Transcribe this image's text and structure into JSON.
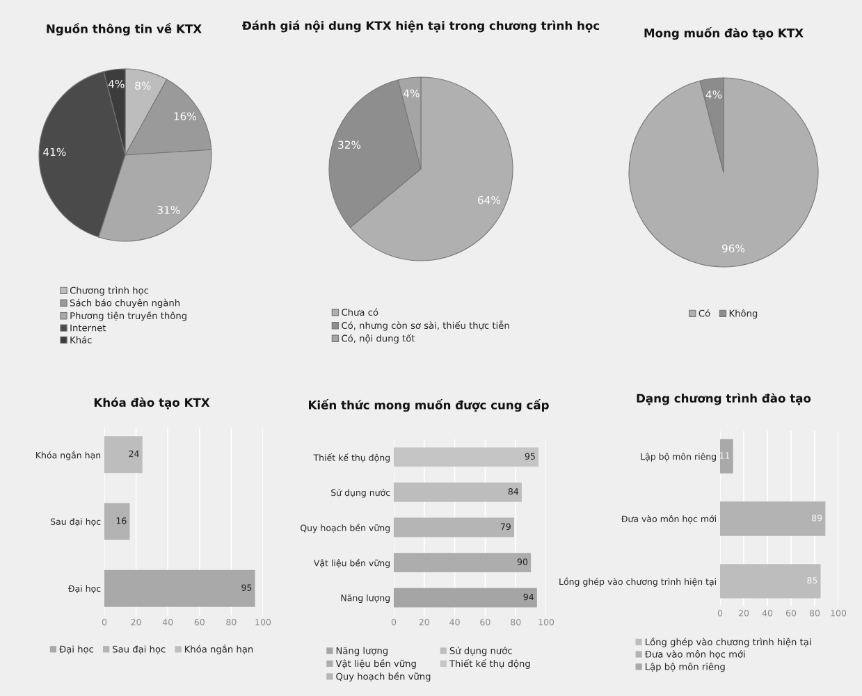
{
  "chart_data": [
    {
      "type": "pie",
      "title": "Nguồn thông tin về KTX",
      "categories": [
        "Chương trình học",
        "Sách báo chuyên ngành",
        "Phương tiện truyền thông",
        "Internet",
        "Khác"
      ],
      "values": [
        8,
        16,
        31,
        41,
        4
      ],
      "value_labels": [
        "8%",
        "16%",
        "31%",
        "41%",
        "4%"
      ],
      "colors": [
        "#bdbdbd",
        "#9a9a9a",
        "#aaaaaa",
        "#4a4a4a",
        "#3c3c3c"
      ],
      "legend": "bottom"
    },
    {
      "type": "pie",
      "title": "Đánh giá nội dung KTX hiện tại trong chương trình học",
      "categories": [
        "Chưa có",
        "Có, nhưng còn sơ sài, thiếu thực tiễn",
        "Có, nội dung tốt"
      ],
      "values": [
        64,
        32,
        4
      ],
      "value_labels": [
        "64%",
        "32%",
        "4%"
      ],
      "colors": [
        "#b0b0b0",
        "#8e8e8e",
        "#a5a5a5"
      ],
      "legend": "bottom"
    },
    {
      "type": "pie",
      "title": "Mong muốn đào tạo KTX",
      "categories": [
        "Có",
        "Không"
      ],
      "values": [
        96,
        4
      ],
      "value_labels": [
        "96%",
        "4%"
      ],
      "colors": [
        "#b0b0b0",
        "#8c8c8c"
      ],
      "legend": "bottom"
    },
    {
      "type": "bar",
      "orientation": "horizontal",
      "title": "Khóa đào tạo KTX",
      "categories": [
        "Khóa ngắn hạn",
        "Sau đại học",
        "Đại học"
      ],
      "series": [
        {
          "name": "Đại học",
          "color": "#a9a9a9",
          "values": [
            null,
            null,
            95
          ]
        },
        {
          "name": "Sau đại học",
          "color": "#b3b3b3",
          "values": [
            null,
            16,
            null
          ]
        },
        {
          "name": "Khóa ngắn hạn",
          "color": "#bdbdbd",
          "values": [
            24,
            null,
            null
          ]
        }
      ],
      "xlim": [
        0,
        100
      ],
      "xticks": [
        0,
        20,
        40,
        60,
        80,
        100
      ],
      "grid": "x",
      "data_labels": true,
      "legend": "bottom"
    },
    {
      "type": "bar",
      "orientation": "horizontal",
      "title": "Kiến thức mong muốn được cung cấp",
      "categories": [
        "Thiết kế thụ động",
        "Sử dụng nước",
        "Quy hoạch bền vững",
        "Vật liệu bền vững",
        "Năng lượng"
      ],
      "series": [
        {
          "name": "Năng lượng",
          "color": "#a5a5a5",
          "values": [
            null,
            null,
            null,
            null,
            94
          ]
        },
        {
          "name": "Vật liệu bền vững",
          "color": "#adadad",
          "values": [
            null,
            null,
            null,
            90,
            null
          ]
        },
        {
          "name": "Quy hoạch bền vững",
          "color": "#b5b5b5",
          "values": [
            null,
            null,
            79,
            null,
            null
          ]
        },
        {
          "name": "Sử dụng nước",
          "color": "#bdbdbd",
          "values": [
            null,
            84,
            null,
            null,
            null
          ]
        },
        {
          "name": "Thiết kế thụ động",
          "color": "#c5c5c5",
          "values": [
            95,
            null,
            null,
            null,
            null
          ]
        }
      ],
      "xlim": [
        0,
        100
      ],
      "xticks": [
        0,
        20,
        40,
        60,
        80,
        100
      ],
      "grid": "x",
      "data_labels": true,
      "legend": "bottom"
    },
    {
      "type": "bar",
      "orientation": "horizontal",
      "title": "Dạng chương trình đào tạo",
      "categories": [
        "Lập bộ môn riêng",
        "Đưa vào môn học mới",
        "Lồng ghép vào chương trình hiện tại"
      ],
      "series": [
        {
          "name": "Lồng ghép vào chương trình hiện tại",
          "color": "#bdbdbd",
          "values": [
            null,
            null,
            85
          ]
        },
        {
          "name": "Đưa vào môn học mới",
          "color": "#b3b3b3",
          "values": [
            null,
            89,
            null
          ]
        },
        {
          "name": "Lập bộ môn riêng",
          "color": "#a9a9a9",
          "values": [
            11,
            null,
            null
          ]
        }
      ],
      "xlim": [
        0,
        100
      ],
      "xticks": [
        0,
        20,
        40,
        60,
        80,
        100
      ],
      "grid": "x",
      "data_labels": true,
      "legend": "bottom"
    }
  ]
}
